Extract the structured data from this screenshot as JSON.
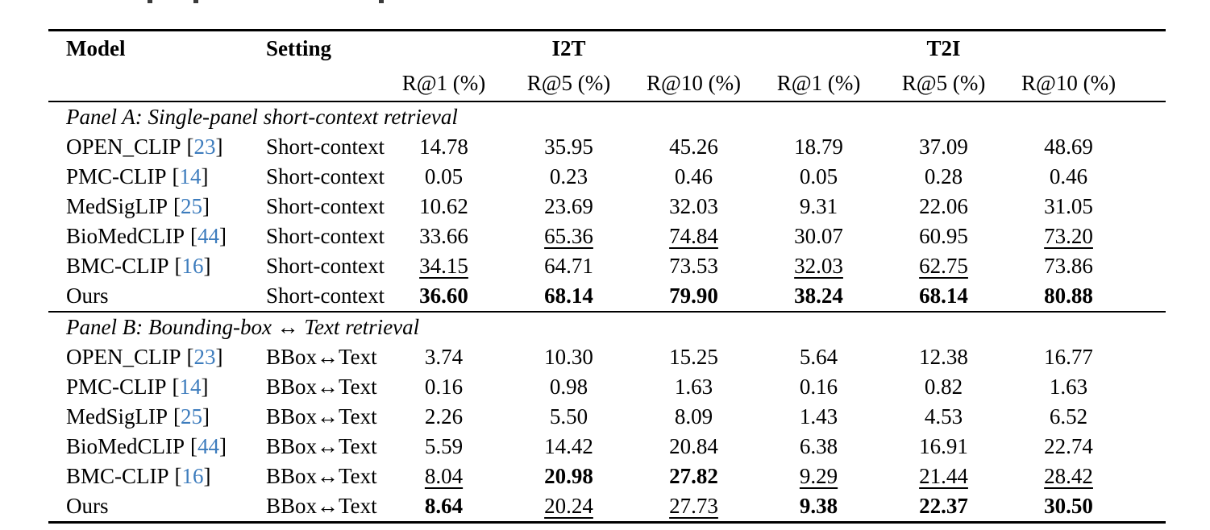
{
  "punct": {
    "open": "[",
    "close": "]"
  },
  "colors": {
    "citation_blue": "#3d7cbd",
    "text": "#000000"
  },
  "header": {
    "model": "Model",
    "setting": "Setting",
    "group_i2t": "I2T",
    "group_t2i": "T2I",
    "metrics": [
      "R@1 (%)",
      "R@5 (%)",
      "R@10 (%)",
      "R@1 (%)",
      "R@5 (%)",
      "R@10 (%)"
    ]
  },
  "panels": [
    {
      "label": "Panel A: Single-panel short-context retrieval",
      "rows": [
        {
          "model": "OPEN_CLIP",
          "cite": "23",
          "setting": "Short-context",
          "values": [
            "14.78",
            "35.95",
            "45.26",
            "18.79",
            "37.09",
            "48.69"
          ],
          "styles": [
            "p",
            "p",
            "p",
            "p",
            "p",
            "p"
          ]
        },
        {
          "model": "PMC-CLIP",
          "cite": "14",
          "setting": "Short-context",
          "values": [
            "0.05",
            "0.23",
            "0.46",
            "0.05",
            "0.28",
            "0.46"
          ],
          "styles": [
            "p",
            "p",
            "p",
            "p",
            "p",
            "p"
          ]
        },
        {
          "model": "MedSigLIP",
          "cite": "25",
          "setting": "Short-context",
          "values": [
            "10.62",
            "23.69",
            "32.03",
            "9.31",
            "22.06",
            "31.05"
          ],
          "styles": [
            "p",
            "p",
            "p",
            "p",
            "p",
            "p"
          ]
        },
        {
          "model": "BioMedCLIP",
          "cite": "44",
          "setting": "Short-context",
          "values": [
            "33.66",
            "65.36",
            "74.84",
            "30.07",
            "60.95",
            "73.20"
          ],
          "styles": [
            "p",
            "u",
            "u",
            "p",
            "p",
            "u"
          ]
        },
        {
          "model": "BMC-CLIP",
          "cite": "16",
          "setting": "Short-context",
          "values": [
            "34.15",
            "64.71",
            "73.53",
            "32.03",
            "62.75",
            "73.86"
          ],
          "styles": [
            "u",
            "p",
            "p",
            "u",
            "u",
            "p"
          ]
        },
        {
          "model": "Ours",
          "cite": "",
          "setting": "Short-context",
          "values": [
            "36.60",
            "68.14",
            "79.90",
            "38.24",
            "68.14",
            "80.88"
          ],
          "styles": [
            "b",
            "b",
            "b",
            "b",
            "b",
            "b"
          ]
        }
      ]
    },
    {
      "label": "Panel B: Bounding-box ↔ Text retrieval",
      "rows": [
        {
          "model": "OPEN_CLIP",
          "cite": "23",
          "setting": "BBox↔Text",
          "values": [
            "3.74",
            "10.30",
            "15.25",
            "5.64",
            "12.38",
            "16.77"
          ],
          "styles": [
            "p",
            "p",
            "p",
            "p",
            "p",
            "p"
          ]
        },
        {
          "model": "PMC-CLIP",
          "cite": "14",
          "setting": "BBox↔Text",
          "values": [
            "0.16",
            "0.98",
            "1.63",
            "0.16",
            "0.82",
            "1.63"
          ],
          "styles": [
            "p",
            "p",
            "p",
            "p",
            "p",
            "p"
          ]
        },
        {
          "model": "MedSigLIP",
          "cite": "25",
          "setting": "BBox↔Text",
          "values": [
            "2.26",
            "5.50",
            "8.09",
            "1.43",
            "4.53",
            "6.52"
          ],
          "styles": [
            "p",
            "p",
            "p",
            "p",
            "p",
            "p"
          ]
        },
        {
          "model": "BioMedCLIP",
          "cite": "44",
          "setting": "BBox↔Text",
          "values": [
            "5.59",
            "14.42",
            "20.84",
            "6.38",
            "16.91",
            "22.74"
          ],
          "styles": [
            "p",
            "p",
            "p",
            "p",
            "p",
            "p"
          ]
        },
        {
          "model": "BMC-CLIP",
          "cite": "16",
          "setting": "BBox↔Text",
          "values": [
            "8.04",
            "20.98",
            "27.82",
            "9.29",
            "21.44",
            "28.42"
          ],
          "styles": [
            "u",
            "b",
            "b",
            "u",
            "u",
            "u"
          ]
        },
        {
          "model": "Ours",
          "cite": "",
          "setting": "BBox↔Text",
          "values": [
            "8.64",
            "20.24",
            "27.73",
            "9.38",
            "22.37",
            "30.50"
          ],
          "styles": [
            "b",
            "u",
            "u",
            "b",
            "b",
            "b"
          ]
        }
      ]
    }
  ]
}
